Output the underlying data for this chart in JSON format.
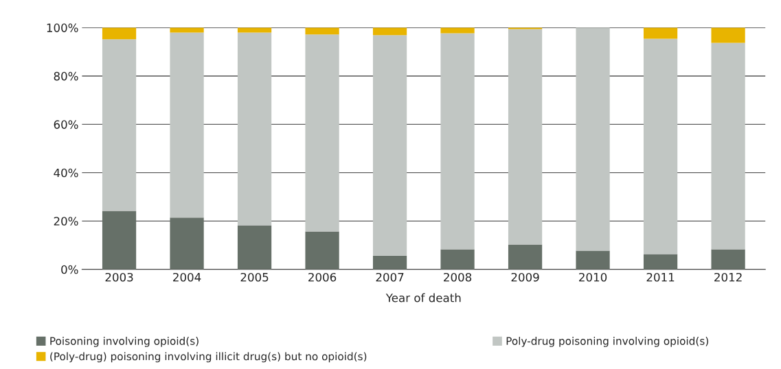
{
  "chart_data": {
    "type": "bar",
    "stacked": true,
    "xlabel": "Year of death",
    "categories": [
      "2003",
      "2004",
      "2005",
      "2006",
      "2007",
      "2008",
      "2009",
      "2010",
      "2011",
      "2012"
    ],
    "series": [
      {
        "name": "Poisoning involving opioid(s)",
        "color": "#667068",
        "values": [
          24.2,
          21.4,
          18.2,
          15.7,
          5.7,
          8.3,
          10.3,
          7.7,
          6.3,
          8.3
        ]
      },
      {
        "name": "Poly-drug poisoning involving opioid(s)",
        "color": "#c1c6c3",
        "values": [
          71.0,
          76.6,
          79.8,
          81.5,
          91.2,
          89.4,
          89.1,
          92.3,
          89.1,
          85.4
        ]
      },
      {
        "name": "(Poly-drug) poisoning involving illicit drug(s) but no opioid(s)",
        "color": "#e8b400",
        "values": [
          4.8,
          2.0,
          2.0,
          2.8,
          3.1,
          2.3,
          0.6,
          null,
          4.6,
          6.3
        ]
      }
    ],
    "ylim": [
      0,
      100
    ],
    "yticks": [
      {
        "value": 0,
        "label": "0%"
      },
      {
        "value": 20,
        "label": "20%"
      },
      {
        "value": 40,
        "label": "40%"
      },
      {
        "value": 60,
        "label": "60%"
      },
      {
        "value": 80,
        "label": "80%"
      },
      {
        "value": 100,
        "label": "100%"
      }
    ],
    "grid": "y",
    "legend": "bottom"
  }
}
